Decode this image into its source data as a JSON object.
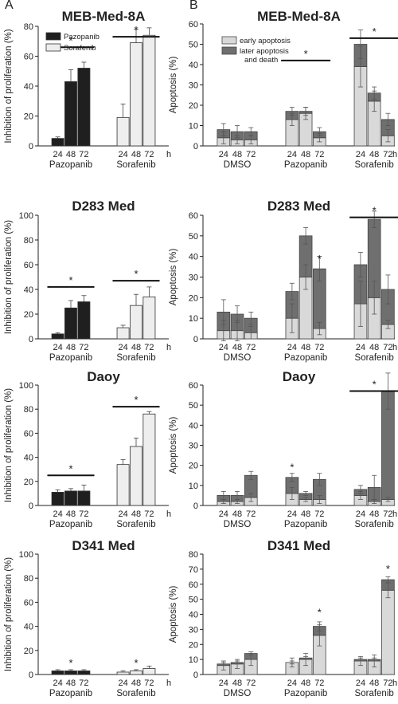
{
  "figure": {
    "panel_labels": [
      "A",
      "B"
    ],
    "colors": {
      "pazopanib": "#1f1f1f",
      "sorafenib": "#eeeeee",
      "early": "#d9d9d9",
      "later": "#6f6f6f",
      "axis": "#222222",
      "sig_bar": "#111111"
    }
  },
  "chart_data": [
    {
      "id": "A1",
      "type": "bar",
      "title": "MEB-Med-8A",
      "ylabel": "Inhibition of proliferation (%)",
      "ylim": [
        0,
        80
      ],
      "yticks": [
        0,
        20,
        40,
        60,
        80
      ],
      "unit_label": "h",
      "groups": [
        {
          "name": "Pazopanib",
          "times": [
            "24",
            "48",
            "72"
          ]
        },
        {
          "name": "Sorafenib",
          "times": [
            "24",
            "48",
            "72"
          ]
        }
      ],
      "series": [
        {
          "name": "Pazopanib",
          "group": 0,
          "values": [
            5,
            43,
            52
          ],
          "errors": [
            1,
            8,
            4
          ]
        },
        {
          "name": "Sorafenib",
          "group": 1,
          "values": [
            19,
            69,
            74
          ],
          "errors": [
            9,
            9,
            5
          ]
        }
      ],
      "legend": [
        "Pazopanib",
        "Sorafenib"
      ],
      "significance": [
        {
          "group": 0,
          "y": 66,
          "label": "*"
        },
        {
          "group": 1,
          "y": 73,
          "label": "*"
        }
      ]
    },
    {
      "id": "B1",
      "type": "bar",
      "stacked": true,
      "title": "MEB-Med-8A",
      "ylabel": "Apoptosis (%)",
      "ylim": [
        0,
        60
      ],
      "yticks": [
        0,
        10,
        20,
        30,
        40,
        50,
        60
      ],
      "unit_label": "h",
      "groups": [
        {
          "name": "DMSO",
          "times": [
            "24",
            "48",
            "72"
          ]
        },
        {
          "name": "Pazopanib",
          "times": [
            "24",
            "48",
            "72"
          ]
        },
        {
          "name": "Sorafenib",
          "times": [
            "24",
            "48",
            "72"
          ]
        }
      ],
      "series": [
        {
          "name": "early apoptosis",
          "values": [
            [
              4,
              3,
              3
            ],
            [
              13,
              16,
              4
            ],
            [
              39,
              22,
              5
            ]
          ],
          "errors": [
            [
              3,
              2,
              2
            ],
            [
              3,
              3,
              2
            ],
            [
              10,
              5,
              3
            ]
          ]
        },
        {
          "name": "later apoptosis and death",
          "values": [
            [
              4,
              4,
              4
            ],
            [
              4,
              1,
              3
            ],
            [
              11,
              4,
              8
            ]
          ],
          "errors": [
            [
              3,
              3,
              2
            ],
            [
              2,
              2,
              2
            ],
            [
              7,
              3,
              3
            ]
          ]
        }
      ],
      "legend": [
        "early apoptosis",
        "later apoptosis and death"
      ],
      "significance": [
        {
          "group": 1,
          "y": 42,
          "label": "*"
        },
        {
          "group": 2,
          "y": 53,
          "label": "*"
        }
      ]
    },
    {
      "id": "A2",
      "type": "bar",
      "title": "D283 Med",
      "ylabel": "Inhibition of proliferation (%)",
      "ylim": [
        0,
        100
      ],
      "yticks": [
        0,
        20,
        40,
        60,
        80,
        100
      ],
      "unit_label": "h",
      "groups": [
        {
          "name": "Pazopanib",
          "times": [
            "24",
            "48",
            "72"
          ]
        },
        {
          "name": "Sorafenib",
          "times": [
            "24",
            "48",
            "72"
          ]
        }
      ],
      "series": [
        {
          "name": "Pazopanib",
          "group": 0,
          "values": [
            4,
            25,
            30
          ],
          "errors": [
            1,
            6,
            5
          ]
        },
        {
          "name": "Sorafenib",
          "group": 1,
          "values": [
            9,
            27,
            34
          ],
          "errors": [
            2,
            9,
            8
          ]
        }
      ],
      "significance": [
        {
          "group": 0,
          "y": 42,
          "label": "*"
        },
        {
          "group": 1,
          "y": 47,
          "label": "*"
        }
      ]
    },
    {
      "id": "B2",
      "type": "bar",
      "stacked": true,
      "title": "D283 Med",
      "ylabel": "Apoptosis (%)",
      "ylim": [
        0,
        60
      ],
      "yticks": [
        0,
        10,
        20,
        30,
        40,
        50,
        60
      ],
      "unit_label": "h",
      "groups": [
        {
          "name": "DMSO",
          "times": [
            "24",
            "48",
            "72"
          ]
        },
        {
          "name": "Pazopanib",
          "times": [
            "24",
            "48",
            "72"
          ]
        },
        {
          "name": "Sorafenib",
          "times": [
            "24",
            "48",
            "72"
          ]
        }
      ],
      "series": [
        {
          "name": "early apoptosis",
          "values": [
            [
              4,
              4,
              3
            ],
            [
              10,
              30,
              5
            ],
            [
              17,
              20,
              7
            ]
          ],
          "errors": [
            [
              5,
              5,
              3
            ],
            [
              7,
              6,
              3
            ],
            [
              11,
              8,
              2
            ]
          ]
        },
        {
          "name": "later apoptosis and death",
          "values": [
            [
              9,
              8,
              7
            ],
            [
              13,
              20,
              29
            ],
            [
              19,
              38,
              17
            ]
          ],
          "errors": [
            [
              6,
              4,
              3
            ],
            [
              4,
              4,
              6
            ],
            [
              6,
              4,
              7
            ]
          ]
        }
      ],
      "significance": [
        {
          "group": 1,
          "y": 38,
          "label": "*",
          "single": true,
          "time": 2
        },
        {
          "group": 2,
          "y": 59,
          "label": "*"
        }
      ]
    },
    {
      "id": "A3",
      "type": "bar",
      "title": "Daoy",
      "ylabel": "Inhibition of proliferation (%)",
      "ylim": [
        0,
        100
      ],
      "yticks": [
        0,
        20,
        40,
        60,
        80,
        100
      ],
      "unit_label": "h",
      "groups": [
        {
          "name": "Pazopanib",
          "times": [
            "24",
            "48",
            "72"
          ]
        },
        {
          "name": "Sorafenib",
          "times": [
            "24",
            "48",
            "72"
          ]
        }
      ],
      "series": [
        {
          "name": "Pazopanib",
          "group": 0,
          "values": [
            11,
            12,
            12
          ],
          "errors": [
            2,
            2,
            5
          ]
        },
        {
          "name": "Sorafenib",
          "group": 1,
          "values": [
            34,
            49,
            76
          ],
          "errors": [
            4,
            7,
            2
          ]
        }
      ],
      "significance": [
        {
          "group": 0,
          "y": 25,
          "label": "*"
        },
        {
          "group": 1,
          "y": 82,
          "label": "*"
        }
      ]
    },
    {
      "id": "B3",
      "type": "bar",
      "stacked": true,
      "title": "Daoy",
      "ylabel": "Apoptosis (%)",
      "ylim": [
        0,
        60
      ],
      "yticks": [
        0,
        10,
        20,
        30,
        40,
        50,
        60
      ],
      "unit_label": "h",
      "groups": [
        {
          "name": "DMSO",
          "times": [
            "24",
            "48",
            "72"
          ]
        },
        {
          "name": "Pazopanib",
          "times": [
            "24",
            "48",
            "72"
          ]
        },
        {
          "name": "Sorafenib",
          "times": [
            "24",
            "48",
            "72"
          ]
        }
      ],
      "series": [
        {
          "name": "early apoptosis",
          "values": [
            [
              2,
              2,
              4
            ],
            [
              6,
              3,
              3
            ],
            [
              5,
              2,
              3
            ]
          ],
          "errors": [
            [
              1,
              1,
              2
            ],
            [
              3,
              1,
              2
            ],
            [
              2,
              1,
              1
            ]
          ]
        },
        {
          "name": "later apoptosis and death",
          "values": [
            [
              3,
              3,
              11
            ],
            [
              8,
              3,
              10
            ],
            [
              3,
              7,
              54
            ]
          ],
          "errors": [
            [
              2,
              2,
              2
            ],
            [
              2,
              1,
              3
            ],
            [
              2,
              6,
              9
            ]
          ]
        }
      ],
      "significance": [
        {
          "group": 1,
          "y": 18,
          "label": "*",
          "single": true,
          "time": 0
        },
        {
          "group": 2,
          "y": 57,
          "label": "*"
        }
      ]
    },
    {
      "id": "A4",
      "type": "bar",
      "title": "D341 Med",
      "ylabel": "Inhibition of proliferation (%)",
      "ylim": [
        0,
        100
      ],
      "yticks": [
        0,
        20,
        40,
        60,
        80,
        100
      ],
      "unit_label": "h",
      "groups": [
        {
          "name": "Pazopanib",
          "times": [
            "24",
            "48",
            "72"
          ]
        },
        {
          "name": "Sorafenib",
          "times": [
            "24",
            "48",
            "72"
          ]
        }
      ],
      "series": [
        {
          "name": "Pazopanib",
          "group": 0,
          "values": [
            3,
            3,
            3
          ],
          "errors": [
            1,
            1,
            1
          ]
        },
        {
          "name": "Sorafenib",
          "group": 1,
          "values": [
            2,
            3,
            5
          ],
          "errors": [
            1,
            1,
            2
          ]
        }
      ],
      "significance": [
        {
          "group": 0,
          "y": 8,
          "label": "*",
          "single": true,
          "time": 1
        },
        {
          "group": 1,
          "y": 8,
          "label": "*",
          "single": true,
          "time": 1
        }
      ]
    },
    {
      "id": "B4",
      "type": "bar",
      "stacked": true,
      "title": "D341 Med",
      "ylabel": "Apoptosis (%)",
      "ylim": [
        0,
        80
      ],
      "yticks": [
        0,
        10,
        20,
        30,
        40,
        50,
        60,
        70,
        80
      ],
      "unit_label": "h",
      "groups": [
        {
          "name": "DMSO",
          "times": [
            "24",
            "48",
            "72"
          ]
        },
        {
          "name": "Pazopanib",
          "times": [
            "24",
            "48",
            "72"
          ]
        },
        {
          "name": "Sorafenib",
          "times": [
            "24",
            "48",
            "72"
          ]
        }
      ],
      "series": [
        {
          "name": "early apoptosis",
          "values": [
            [
              6,
              7,
              10
            ],
            [
              8,
              10,
              26
            ],
            [
              9,
              9,
              56
            ]
          ],
          "errors": [
            [
              3,
              3,
              4
            ],
            [
              3,
              4,
              7
            ],
            [
              3,
              4,
              5
            ]
          ]
        },
        {
          "name": "later apoptosis and death",
          "values": [
            [
              1,
              1,
              4
            ],
            [
              0,
              1,
              6
            ],
            [
              1,
              1,
              7
            ]
          ],
          "errors": [
            [
              1,
              1,
              1
            ],
            [
              1,
              1,
              3
            ],
            [
              1,
              1,
              2
            ]
          ]
        }
      ],
      "significance": [
        {
          "group": 1,
          "y": 40,
          "label": "*",
          "single": true,
          "time": 2
        },
        {
          "group": 2,
          "y": 69,
          "label": "*",
          "single": true,
          "time": 2
        }
      ]
    }
  ]
}
